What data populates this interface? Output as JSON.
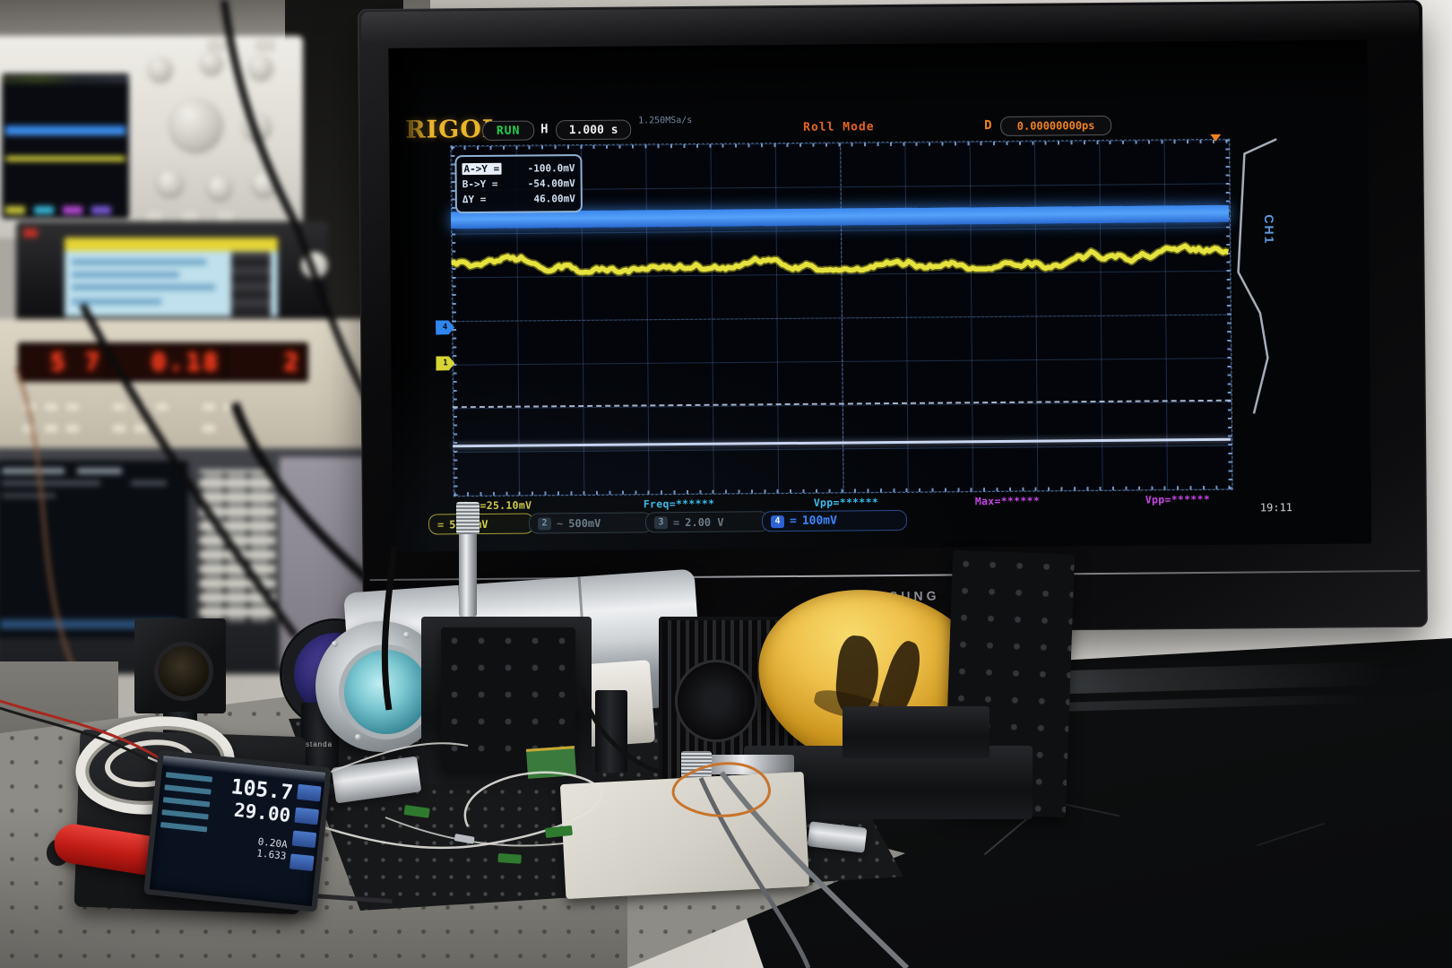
{
  "scope": {
    "brand": "RIGOL",
    "run_state": "RUN",
    "h_label": "H",
    "timebase": "1.000 s",
    "sample_rate": "1.250MSa/s",
    "acq_mode": "Roll Mode",
    "delay_label": "D",
    "delay_value": "0.00000000ps",
    "side_tab": "CH1",
    "clock": "19:11",
    "cursor_box": {
      "rows": [
        {
          "label": "A->Y =",
          "value": "-100.0mV"
        },
        {
          "label": "B->Y =",
          "value": "-54.00mV"
        },
        {
          "label": "ΔY =",
          "value": "46.00mV"
        }
      ]
    },
    "measurements": [
      {
        "text": "Vpp=25.10mV",
        "color": "#d8d23e"
      },
      {
        "text": "Freq=******",
        "color": "#38c0f0"
      },
      {
        "text": "Vpp=******",
        "color": "#38c0f0"
      },
      {
        "text": "Max=******",
        "color": "#c848e8"
      },
      {
        "text": "Vpp=******",
        "color": "#c848e8"
      }
    ],
    "channels": [
      {
        "num": "1",
        "coupling": "=",
        "scale": "50.0mV"
      },
      {
        "num": "2",
        "coupling": "~",
        "scale": "500mV"
      },
      {
        "num": "3",
        "coupling": "=",
        "scale": "2.00 V"
      },
      {
        "num": "4",
        "coupling": "=",
        "scale": "100mV"
      }
    ],
    "colors": {
      "ch1_yellow": "#e6e23e",
      "ch4_blue": "#3a86ec",
      "mode_orange": "#e8641e",
      "run_green": "#1fd24c",
      "brand_gold": "#e9b52d"
    }
  },
  "monitor": {
    "brand": "SAMSUNG"
  },
  "bench": {
    "power_meter": {
      "v1": "105.7",
      "v2": "29.00",
      "v3": "0.20A",
      "v4": "1.633"
    },
    "post_label": "standa"
  },
  "instruments": {
    "counter": {
      "d1": "5 7",
      "d2": "0.18",
      "d3": "2"
    }
  }
}
